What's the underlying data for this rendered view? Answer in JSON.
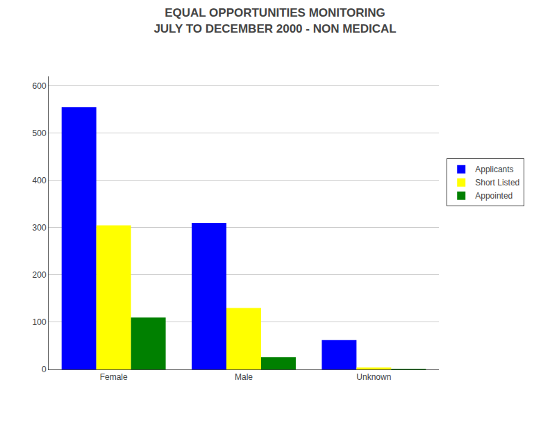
{
  "chart_data": {
    "type": "bar",
    "title": "EQUAL OPPORTUNITIES MONITORING",
    "subtitle": "JULY TO DECEMBER 2000 - NON MEDICAL",
    "categories": [
      "Female",
      "Male",
      "Unknown"
    ],
    "series": [
      {
        "name": "Applicants",
        "color": "#0000FF",
        "values": [
          555,
          310,
          62
        ]
      },
      {
        "name": "Short Listed",
        "color": "#FFFF00",
        "values": [
          305,
          130,
          4
        ]
      },
      {
        "name": "Appointed",
        "color": "#008000",
        "values": [
          110,
          26,
          1
        ]
      }
    ],
    "ylim": [
      0,
      620
    ],
    "yticks": [
      0,
      100,
      200,
      300,
      400,
      500,
      600
    ],
    "grid": true,
    "legend": "right"
  }
}
